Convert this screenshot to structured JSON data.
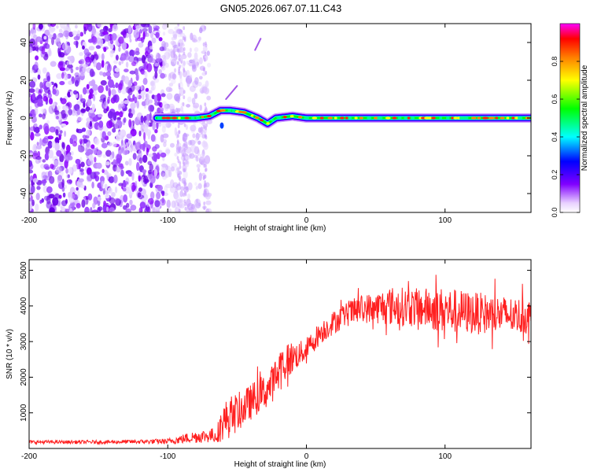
{
  "title": "GN05.2026.067.07.11.C43",
  "chart_data": [
    {
      "type": "heatmap",
      "name": "spectrogram",
      "xlabel": "Height of straight line (km)",
      "ylabel": "Frequency (Hz)",
      "xlim": [
        -200,
        162
      ],
      "ylim": [
        -50,
        50
      ],
      "xticks": [
        -200,
        -100,
        0,
        100
      ],
      "yticks": [
        -40,
        -20,
        0,
        20,
        40
      ],
      "colorbar": {
        "label": "Normalized spectral amplitude",
        "range": [
          0.0,
          1.0
        ],
        "ticks": [
          0.0,
          0.2,
          0.4,
          0.6,
          0.8
        ],
        "tick_labels": [
          "0.0",
          "0.2",
          "0.4",
          "0.6",
          "0.8"
        ],
        "colors": [
          "#ffffff",
          "#8000ff",
          "#0000ff",
          "#00ffff",
          "#00ff00",
          "#ffff00",
          "#ff8000",
          "#ff0000",
          "#ff00ff"
        ]
      },
      "noise_region_x": [
        -200,
        -70
      ],
      "dense_noise_x": [
        -200,
        -103
      ],
      "track": {
        "x": [
          -108,
          -100,
          -90,
          -80,
          -70,
          -62,
          -55,
          -45,
          -35,
          -28,
          -22,
          -10,
          0,
          20,
          40,
          60,
          80,
          100,
          120,
          140,
          162
        ],
        "freq": [
          0,
          0,
          0,
          0,
          1,
          4,
          4,
          3,
          0,
          -3,
          0,
          1,
          0,
          0,
          0,
          0,
          0,
          0,
          0,
          0,
          0
        ]
      },
      "annotations": [
        {
          "desc": "short streak",
          "x": [
            -58,
            -50
          ],
          "freq": [
            10,
            17
          ]
        },
        {
          "desc": "faint streak",
          "x": [
            -37,
            -33
          ],
          "freq": [
            36,
            42
          ]
        }
      ]
    },
    {
      "type": "line",
      "name": "snr",
      "xlabel": "Height of straight line (km)",
      "ylabel": "SNR (10 * v/v)",
      "xlim": [
        -200,
        162
      ],
      "ylim": [
        0,
        5300
      ],
      "xticks": [
        -200,
        -100,
        0,
        100
      ],
      "yticks": [
        1000,
        2000,
        3000,
        4000,
        5000
      ],
      "color": "#ff2020",
      "series": [
        {
          "name": "SNR",
          "x": [
            -200,
            -150,
            -120,
            -100,
            -90,
            -80,
            -70,
            -65,
            -60,
            -55,
            -50,
            -45,
            -40,
            -35,
            -30,
            -25,
            -20,
            -15,
            -10,
            -5,
            0,
            10,
            20,
            30,
            40,
            50,
            60,
            80,
            100,
            120,
            140,
            162
          ],
          "mean": [
            180,
            180,
            190,
            200,
            260,
            330,
            360,
            380,
            750,
            900,
            1000,
            1150,
            1300,
            1480,
            1580,
            1800,
            2150,
            2450,
            2550,
            2650,
            2780,
            3250,
            3550,
            3780,
            3920,
            3950,
            4000,
            3950,
            3880,
            3800,
            3750,
            3700
          ],
          "amp": [
            50,
            50,
            60,
            80,
            130,
            180,
            200,
            220,
            520,
            600,
            550,
            520,
            500,
            520,
            500,
            520,
            600,
            600,
            450,
            350,
            330,
            330,
            330,
            350,
            400,
            450,
            550,
            550,
            650,
            600,
            550,
            500
          ]
        }
      ]
    }
  ]
}
